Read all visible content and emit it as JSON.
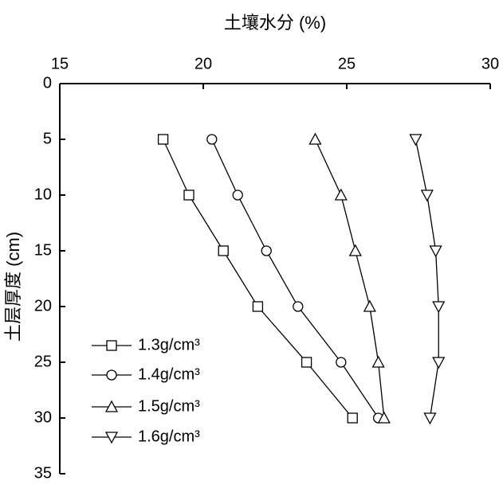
{
  "chart_data": {
    "type": "line",
    "x_label": "土壤水分 (%)",
    "y_label": "土层厚度 (cm)",
    "xlim": [
      15,
      30
    ],
    "xticks": [
      15,
      20,
      25,
      30
    ],
    "ylim": [
      0,
      35
    ],
    "yticks": [
      0,
      5,
      10,
      15,
      20,
      25,
      30,
      35
    ],
    "y_inverted": true,
    "x_axis_position": "top",
    "legend_position": "lower-left",
    "y": [
      5,
      10,
      15,
      20,
      25,
      30
    ],
    "series": [
      {
        "name": "1.3g/cm³",
        "color": "#000000",
        "marker": "square",
        "values": [
          18.6,
          19.5,
          20.7,
          21.9,
          23.6,
          25.2
        ]
      },
      {
        "name": "1.4g/cm³",
        "color": "#000000",
        "marker": "circle",
        "values": [
          20.3,
          21.2,
          22.2,
          23.3,
          24.8,
          26.1
        ]
      },
      {
        "name": "1.5g/cm³",
        "color": "#000000",
        "marker": "triangle-up",
        "values": [
          23.9,
          24.8,
          25.3,
          25.8,
          26.1,
          26.3
        ]
      },
      {
        "name": "1.6g/cm³",
        "color": "#000000",
        "marker": "triangle-down",
        "values": [
          27.4,
          27.8,
          28.1,
          28.2,
          28.2,
          27.9
        ]
      }
    ]
  }
}
